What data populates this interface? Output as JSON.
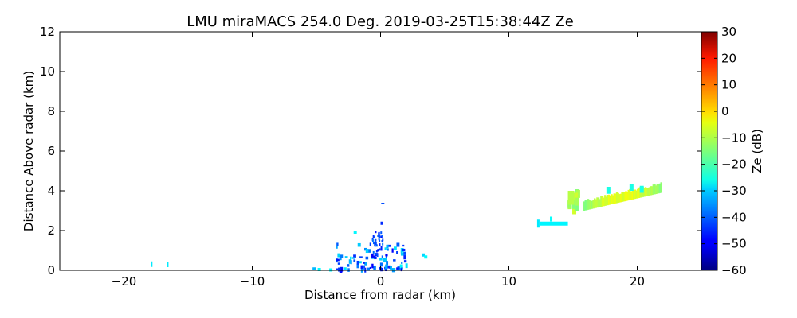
{
  "chart_data": {
    "type": "heatmap",
    "title": "LMU miraMACS 254.0 Deg. 2019-03-25T15:38:44Z  Ze",
    "xlabel": "Distance from radar (km)",
    "ylabel": "Distance Above radar  (km)",
    "xlim": [
      -25,
      25
    ],
    "ylim": [
      0,
      12
    ],
    "x_ticks": [
      -20,
      -10,
      0,
      10,
      20
    ],
    "x_tick_labels": [
      "−20",
      "−10",
      "0",
      "10",
      "20"
    ],
    "y_ticks": [
      0,
      2,
      4,
      6,
      8,
      10,
      12
    ],
    "y_tick_labels": [
      "0",
      "2",
      "4",
      "6",
      "8",
      "10",
      "12"
    ],
    "colorbar": {
      "label": "Ze (dB)",
      "range": [
        -60,
        30
      ],
      "colormap": "jet",
      "ticks": [
        30,
        20,
        10,
        0,
        -10,
        -20,
        -30,
        -40,
        -50,
        -60
      ],
      "tick_labels": [
        "30",
        "20",
        "10",
        "0",
        "−10",
        "−20",
        "−30",
        "−40",
        "−50",
        "−60"
      ]
    },
    "grid": false,
    "echoes": [
      {
        "name": "far-left specks",
        "x_range": [
          -17.9,
          -16.6
        ],
        "y_range": [
          0.2,
          0.4
        ],
        "ze_db": -28
      },
      {
        "name": "near-radar clutter",
        "x_range": [
          -5.5,
          3.5
        ],
        "y_range": [
          0,
          2.5
        ],
        "ze_db": -40
      },
      {
        "name": "near-radar column",
        "x_range": [
          -0.8,
          0.3
        ],
        "y_range": [
          0.6,
          3.4
        ],
        "ze_db": -45
      },
      {
        "name": "low cloud segment",
        "x_range": [
          12.2,
          14.6
        ],
        "y_range": [
          2.2,
          2.6
        ],
        "ze_db": -28
      },
      {
        "name": "cloud patch",
        "x_range": [
          14.5,
          15.5
        ],
        "y_range": [
          3.2,
          4.1
        ],
        "ze_db": -15
      },
      {
        "name": "cloud band",
        "x_range": [
          15.8,
          21.8
        ],
        "y_range": [
          2.9,
          4.3
        ],
        "ze_db": -12
      }
    ]
  }
}
